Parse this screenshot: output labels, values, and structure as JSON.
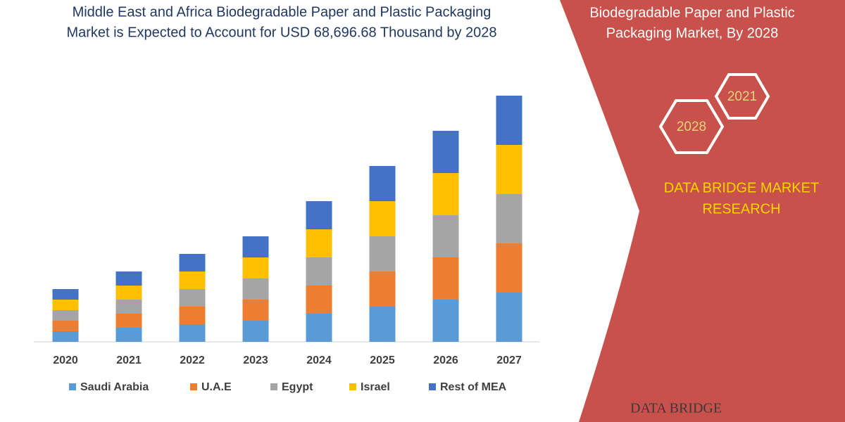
{
  "header": {
    "title": [
      "Middle East and Africa Biodegradable Paper and Plastic Packaging",
      "Market is Expected to Account for USD 68,696.68 Thousand  by 2028"
    ]
  },
  "panel": {
    "title": [
      "Biodegradable Paper and Plastic",
      "Packaging Market, By 2028"
    ],
    "hexagons": [
      "2021",
      "2028"
    ],
    "brand": [
      "DATA BRIDGE MARKET",
      "RESEARCH"
    ],
    "logo": "DATA BRIDGE"
  },
  "chart_data": {
    "type": "stacked_bar",
    "categories": [
      "2020",
      "2021",
      "2022",
      "2023",
      "2024",
      "2025",
      "2026",
      "2027"
    ],
    "series": [
      {
        "name": "Saudi Arabia",
        "color": "#5b9bd5",
        "values": [
          15,
          20,
          25,
          30,
          40,
          50,
          60,
          70
        ]
      },
      {
        "name": "U.A.E",
        "color": "#ed7d31",
        "values": [
          15,
          20,
          25,
          30,
          40,
          50,
          60,
          70
        ]
      },
      {
        "name": "Egypt",
        "color": "#a5a5a5",
        "values": [
          15,
          20,
          25,
          30,
          40,
          50,
          60,
          70
        ]
      },
      {
        "name": "Israel",
        "color": "#ffc000",
        "values": [
          15,
          20,
          25,
          30,
          40,
          50,
          60,
          70
        ]
      },
      {
        "name": "Rest of MEA",
        "color": "#4472c4",
        "values": [
          15,
          20,
          25,
          30,
          40,
          50,
          60,
          70
        ]
      }
    ],
    "ylim": [
      0,
      350
    ]
  }
}
